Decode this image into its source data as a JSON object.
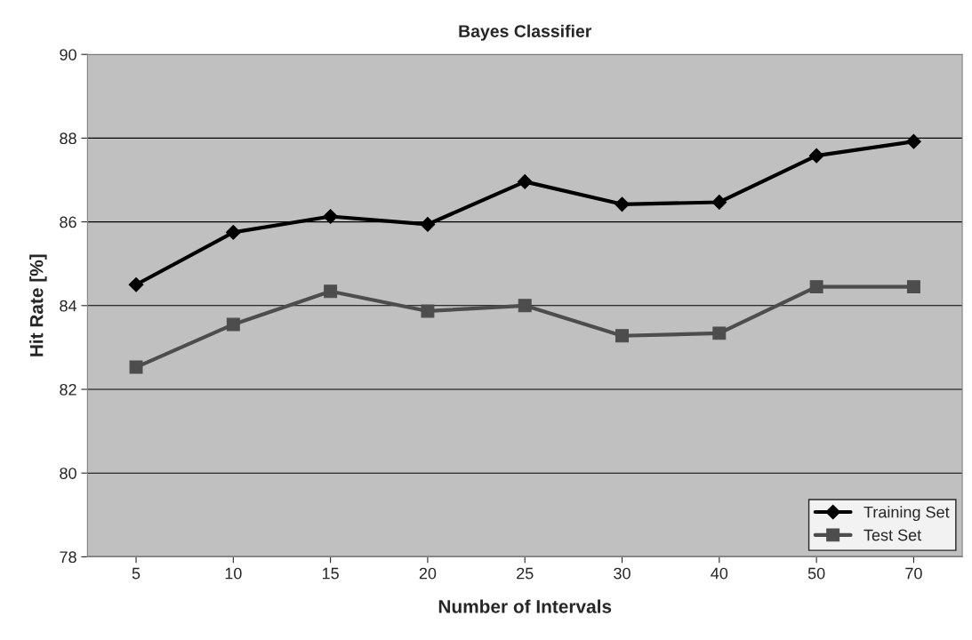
{
  "chart_data": {
    "type": "line",
    "title": "Bayes Classifier",
    "xlabel": "Number of Intervals",
    "ylabel": "Hit Rate [%]",
    "categories": [
      "5",
      "10",
      "15",
      "20",
      "25",
      "30",
      "40",
      "50",
      "70"
    ],
    "series": [
      {
        "name": "Training Set",
        "color": "#000000",
        "marker": "diamond",
        "values": [
          84.5,
          85.75,
          86.13,
          85.94,
          86.96,
          86.42,
          86.47,
          87.58,
          87.92
        ]
      },
      {
        "name": "Test Set",
        "color": "#4d4d4d",
        "marker": "square",
        "values": [
          82.53,
          83.55,
          84.34,
          83.87,
          84.0,
          83.28,
          83.34,
          84.45,
          84.45
        ]
      }
    ],
    "ylim": [
      78,
      90
    ],
    "yticks": [
      78,
      80,
      82,
      84,
      86,
      88,
      90
    ],
    "grid": "y",
    "legend": "bottom right",
    "line_style": "solid"
  }
}
